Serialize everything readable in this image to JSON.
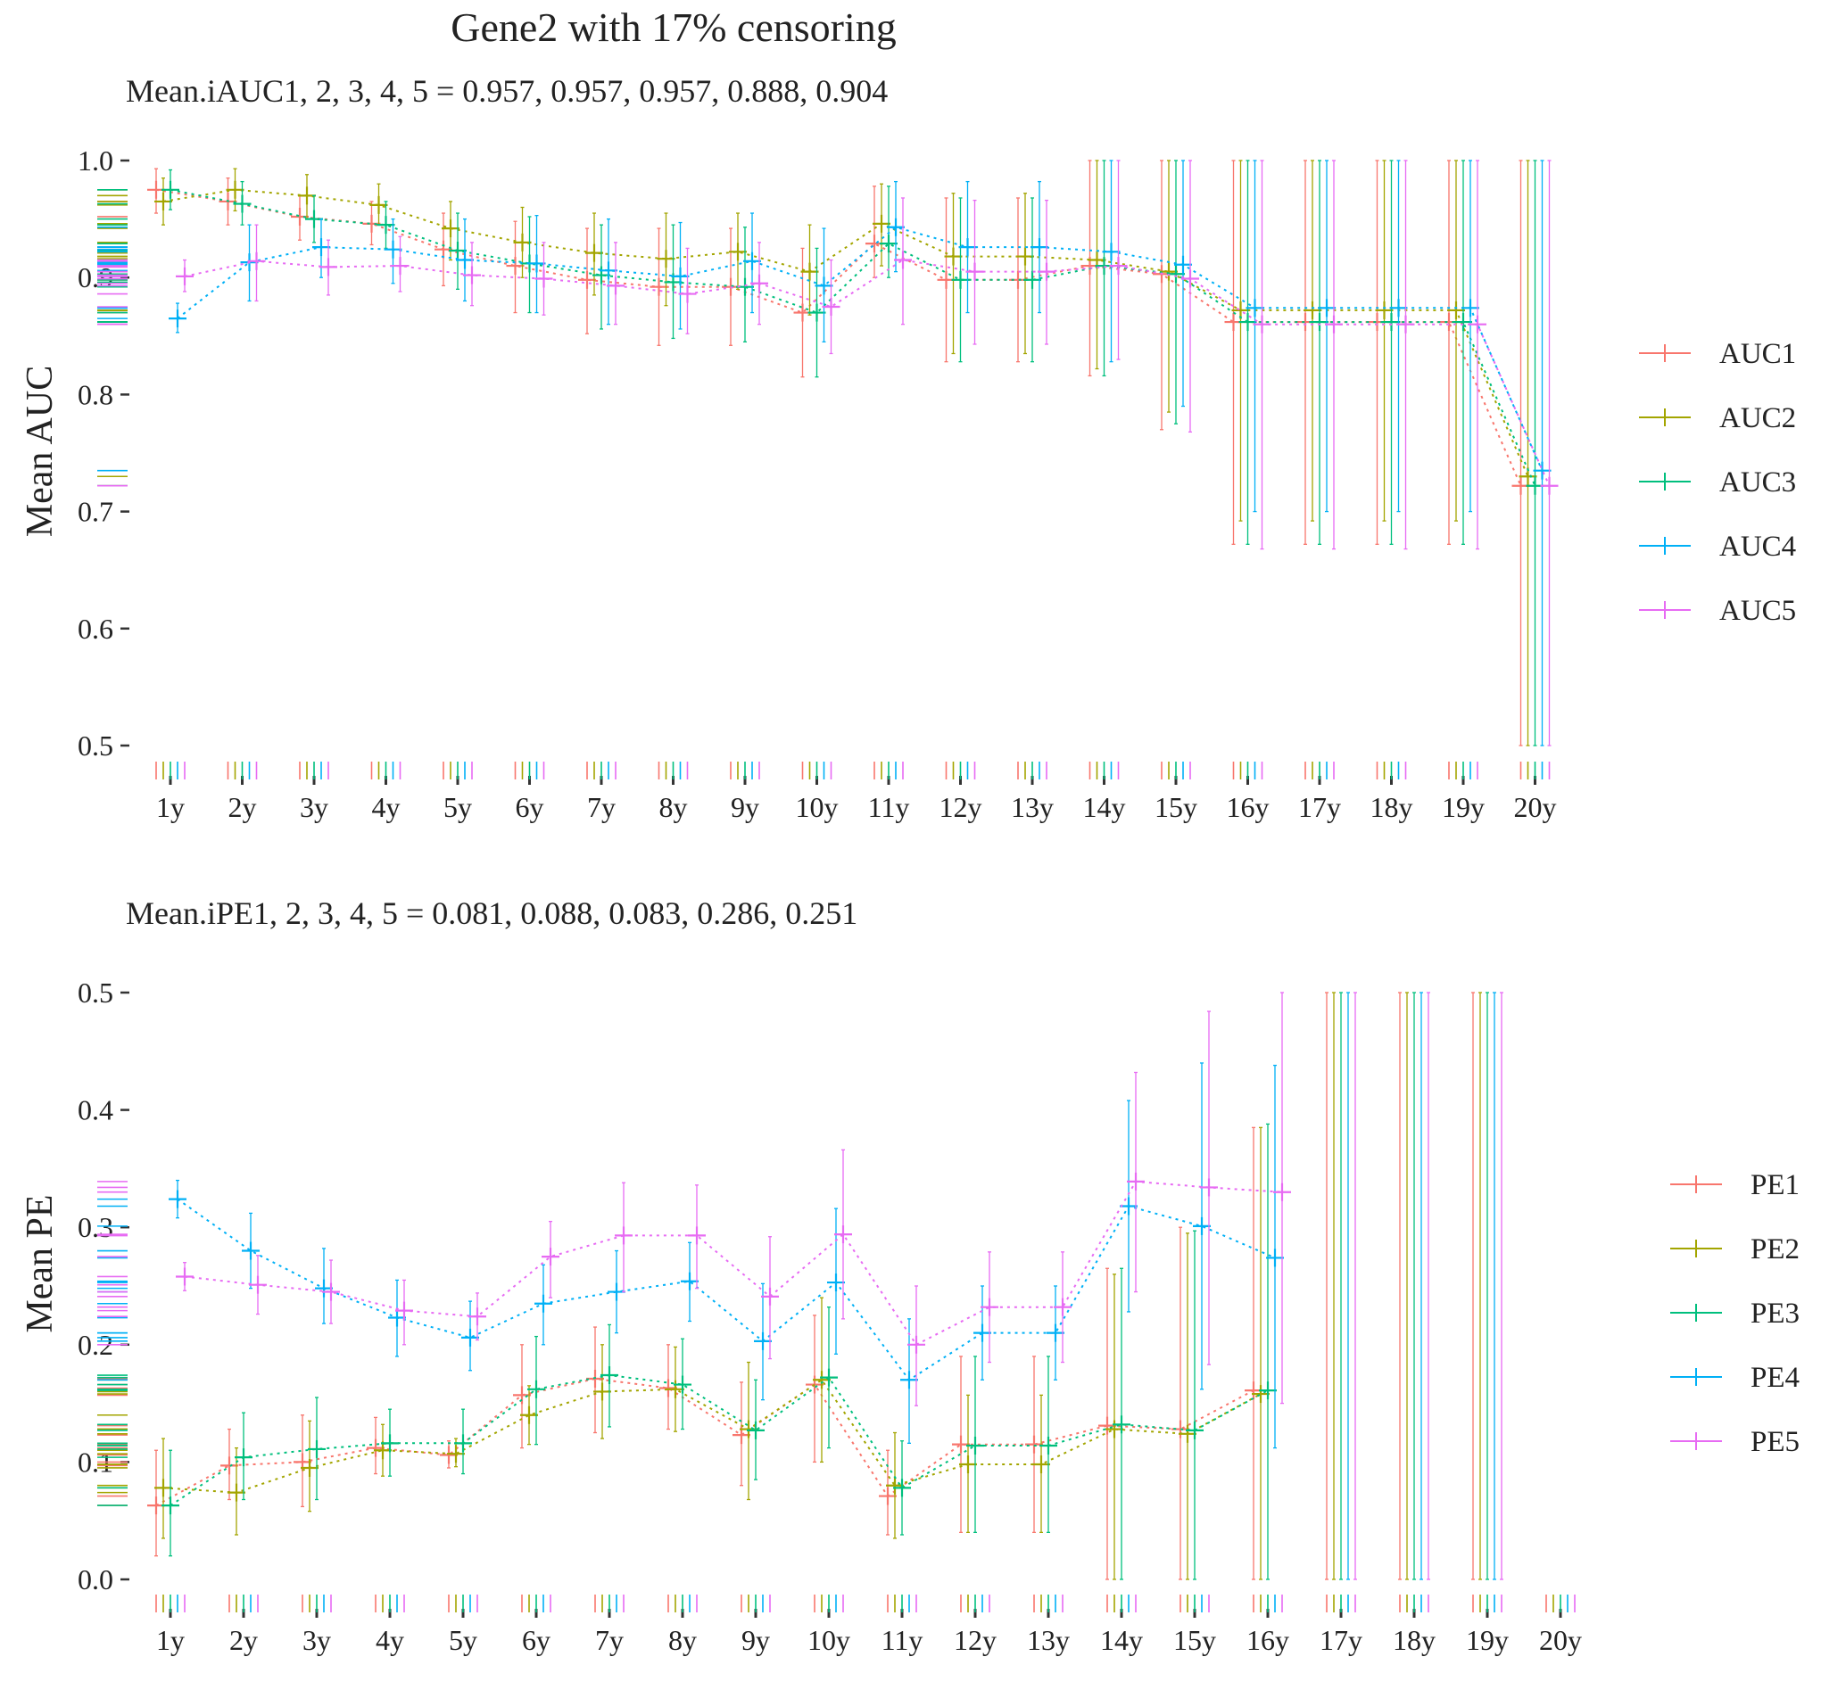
{
  "figure": {
    "title": "Gene2 with 17% censoring"
  },
  "legend_auc": {
    "items": [
      "AUC1",
      "AUC2",
      "AUC3",
      "AUC4",
      "AUC5"
    ]
  },
  "legend_pe": {
    "items": [
      "PE1",
      "PE2",
      "PE3",
      "PE4",
      "PE5"
    ]
  },
  "colors": [
    "#F8766D",
    "#A3A500",
    "#00BF7D",
    "#00B0F6",
    "#E76BF3"
  ],
  "chart_data": [
    {
      "type": "line",
      "panel": "auc",
      "subtitle": "Mean.iAUC1, 2, 3, 4, 5 =  0.957, 0.957, 0.957, 0.888, 0.904",
      "xlabel": "",
      "ylabel": "Mean AUC",
      "ylim": [
        0.5,
        1.0
      ],
      "yticks": [
        0.5,
        0.6,
        0.7,
        0.8,
        0.9,
        1.0
      ],
      "ytick_labels": [
        "0.5",
        "0.6",
        "0.7",
        "0.8",
        "0.9",
        "1.0"
      ],
      "categories": [
        "1y",
        "2y",
        "3y",
        "4y",
        "5y",
        "6y",
        "7y",
        "8y",
        "9y",
        "10y",
        "11y",
        "12y",
        "13y",
        "14y",
        "15y",
        "16y",
        "17y",
        "18y",
        "19y",
        "20y"
      ],
      "series": [
        {
          "name": "AUC1",
          "values": [
            0.975,
            0.965,
            0.952,
            0.946,
            0.924,
            0.91,
            0.898,
            0.892,
            0.892,
            0.87,
            0.929,
            0.898,
            0.898,
            0.91,
            0.903,
            0.862,
            0.862,
            0.862,
            0.862,
            0.722
          ],
          "lower": [
            0.955,
            0.945,
            0.932,
            0.928,
            0.893,
            0.87,
            0.852,
            0.842,
            0.842,
            0.815,
            0.9,
            0.828,
            0.828,
            0.816,
            0.77,
            0.672,
            0.672,
            0.672,
            0.672,
            0.5
          ],
          "upper": [
            0.993,
            0.985,
            0.97,
            0.965,
            0.955,
            0.948,
            0.942,
            0.942,
            0.942,
            0.925,
            0.978,
            0.968,
            0.968,
            1.0,
            1.0,
            1.0,
            1.0,
            1.0,
            1.0,
            1.0
          ]
        },
        {
          "name": "AUC2",
          "values": [
            0.965,
            0.975,
            0.97,
            0.962,
            0.942,
            0.93,
            0.921,
            0.916,
            0.922,
            0.905,
            0.946,
            0.918,
            0.918,
            0.915,
            0.905,
            0.872,
            0.872,
            0.872,
            0.872,
            0.73
          ],
          "lower": [
            0.945,
            0.957,
            0.95,
            0.945,
            0.915,
            0.9,
            0.885,
            0.876,
            0.89,
            0.868,
            0.91,
            0.835,
            0.835,
            0.822,
            0.785,
            0.692,
            0.692,
            0.692,
            0.692,
            0.5
          ],
          "upper": [
            0.985,
            0.993,
            0.988,
            0.98,
            0.965,
            0.96,
            0.955,
            0.955,
            0.955,
            0.945,
            0.98,
            0.972,
            0.972,
            1.0,
            1.0,
            1.0,
            1.0,
            1.0,
            1.0,
            1.0
          ]
        },
        {
          "name": "AUC3",
          "values": [
            0.975,
            0.963,
            0.95,
            0.945,
            0.923,
            0.912,
            0.902,
            0.896,
            0.892,
            0.87,
            0.929,
            0.898,
            0.898,
            0.91,
            0.903,
            0.862,
            0.862,
            0.862,
            0.862,
            0.722
          ],
          "lower": [
            0.958,
            0.945,
            0.93,
            0.925,
            0.89,
            0.87,
            0.856,
            0.848,
            0.845,
            0.815,
            0.9,
            0.828,
            0.828,
            0.816,
            0.775,
            0.672,
            0.672,
            0.672,
            0.672,
            0.5
          ],
          "upper": [
            0.992,
            0.982,
            0.97,
            0.965,
            0.955,
            0.952,
            0.945,
            0.945,
            0.943,
            0.925,
            0.978,
            0.968,
            0.968,
            1.0,
            1.0,
            1.0,
            1.0,
            1.0,
            1.0,
            1.0
          ]
        },
        {
          "name": "AUC4",
          "values": [
            0.865,
            0.913,
            0.926,
            0.924,
            0.915,
            0.912,
            0.906,
            0.901,
            0.914,
            0.893,
            0.943,
            0.926,
            0.926,
            0.922,
            0.911,
            0.874,
            0.874,
            0.874,
            0.874,
            0.735
          ],
          "lower": [
            0.853,
            0.88,
            0.9,
            0.895,
            0.88,
            0.87,
            0.86,
            0.856,
            0.87,
            0.845,
            0.905,
            0.87,
            0.87,
            0.828,
            0.79,
            0.7,
            0.7,
            0.7,
            0.7,
            0.5
          ],
          "upper": [
            0.878,
            0.945,
            0.95,
            0.95,
            0.95,
            0.953,
            0.95,
            0.947,
            0.955,
            0.942,
            0.982,
            0.982,
            0.982,
            1.0,
            1.0,
            1.0,
            1.0,
            1.0,
            1.0,
            1.0
          ]
        },
        {
          "name": "AUC5",
          "values": [
            0.901,
            0.914,
            0.909,
            0.91,
            0.902,
            0.899,
            0.893,
            0.886,
            0.895,
            0.875,
            0.915,
            0.905,
            0.905,
            0.91,
            0.899,
            0.86,
            0.86,
            0.86,
            0.86,
            0.722
          ],
          "lower": [
            0.888,
            0.88,
            0.885,
            0.888,
            0.876,
            0.868,
            0.86,
            0.852,
            0.86,
            0.835,
            0.86,
            0.843,
            0.843,
            0.83,
            0.768,
            0.668,
            0.668,
            0.668,
            0.668,
            0.5
          ],
          "upper": [
            0.915,
            0.945,
            0.932,
            0.935,
            0.93,
            0.93,
            0.93,
            0.925,
            0.93,
            0.915,
            0.968,
            0.966,
            0.966,
            1.0,
            1.0,
            1.0,
            1.0,
            1.0,
            1.0,
            1.0
          ]
        }
      ]
    },
    {
      "type": "line",
      "panel": "pe",
      "subtitle": "Mean.iPE1, 2, 3, 4, 5 =  0.081, 0.088, 0.083, 0.286, 0.251",
      "xlabel": "",
      "ylabel": "Mean PE",
      "ylim": [
        0.0,
        0.5
      ],
      "yticks": [
        0.0,
        0.1,
        0.2,
        0.3,
        0.4,
        0.5
      ],
      "ytick_labels": [
        "0.0",
        "0.1",
        "0.2",
        "0.3",
        "0.4",
        "0.5"
      ],
      "categories": [
        "1y",
        "2y",
        "3y",
        "4y",
        "5y",
        "6y",
        "7y",
        "8y",
        "9y",
        "10y",
        "11y",
        "12y",
        "13y",
        "14y",
        "15y",
        "16y",
        "17y",
        "18y",
        "19y",
        "20y"
      ],
      "series": [
        {
          "name": "PE1",
          "values": [
            0.063,
            0.097,
            0.1,
            0.112,
            0.106,
            0.157,
            0.171,
            0.163,
            0.123,
            0.166,
            0.071,
            0.115,
            0.115,
            0.131,
            0.128,
            0.161,
            null,
            null,
            null,
            null
          ],
          "lower": [
            0.02,
            0.068,
            0.062,
            0.09,
            0.095,
            0.112,
            0.125,
            0.128,
            0.08,
            0.1,
            0.038,
            0.04,
            0.04,
            0.0,
            0.0,
            0.0,
            0.0,
            0.0,
            0.0,
            null
          ],
          "upper": [
            0.11,
            0.128,
            0.14,
            0.138,
            0.118,
            0.2,
            0.215,
            0.2,
            0.168,
            0.225,
            0.11,
            0.19,
            0.19,
            0.265,
            0.3,
            0.385,
            0.5,
            0.5,
            0.5,
            null
          ]
        },
        {
          "name": "PE2",
          "values": [
            0.078,
            0.074,
            0.095,
            0.11,
            0.107,
            0.14,
            0.16,
            0.162,
            0.128,
            0.17,
            0.08,
            0.098,
            0.098,
            0.128,
            0.124,
            0.158,
            null,
            null,
            null,
            null
          ],
          "lower": [
            0.035,
            0.038,
            0.058,
            0.088,
            0.096,
            0.115,
            0.12,
            0.126,
            0.068,
            0.1,
            0.035,
            0.04,
            0.04,
            0.0,
            0.0,
            0.0,
            0.0,
            0.0,
            0.0,
            null
          ],
          "upper": [
            0.12,
            0.112,
            0.135,
            0.132,
            0.12,
            0.165,
            0.2,
            0.198,
            0.185,
            0.24,
            0.125,
            0.157,
            0.157,
            0.26,
            0.295,
            0.385,
            0.5,
            0.5,
            0.5,
            null
          ]
        },
        {
          "name": "PE3",
          "values": [
            0.063,
            0.104,
            0.111,
            0.116,
            0.116,
            0.162,
            0.174,
            0.166,
            0.127,
            0.172,
            0.078,
            0.114,
            0.114,
            0.132,
            0.127,
            0.161,
            null,
            null,
            null,
            null
          ],
          "lower": [
            0.02,
            0.068,
            0.068,
            0.088,
            0.09,
            0.115,
            0.13,
            0.128,
            0.085,
            0.112,
            0.038,
            0.04,
            0.04,
            0.0,
            0.0,
            0.0,
            0.0,
            0.0,
            0.0,
            null
          ],
          "upper": [
            0.11,
            0.142,
            0.155,
            0.145,
            0.145,
            0.207,
            0.217,
            0.205,
            0.17,
            0.232,
            0.118,
            0.19,
            0.19,
            0.265,
            0.297,
            0.388,
            0.5,
            0.5,
            0.5,
            null
          ]
        },
        {
          "name": "PE4",
          "values": [
            0.324,
            0.28,
            0.248,
            0.223,
            0.206,
            0.235,
            0.245,
            0.254,
            0.203,
            0.253,
            0.17,
            0.21,
            0.21,
            0.318,
            0.301,
            0.274,
            null,
            null,
            null,
            null
          ],
          "lower": [
            0.308,
            0.248,
            0.218,
            0.19,
            0.178,
            0.2,
            0.21,
            0.22,
            0.153,
            0.192,
            0.116,
            0.17,
            0.17,
            0.228,
            0.162,
            0.112,
            0.0,
            0.0,
            0.0,
            null
          ],
          "upper": [
            0.34,
            0.312,
            0.282,
            0.255,
            0.237,
            0.268,
            0.28,
            0.287,
            0.252,
            0.316,
            0.222,
            0.25,
            0.25,
            0.408,
            0.44,
            0.438,
            0.5,
            0.5,
            0.5,
            null
          ]
        },
        {
          "name": "PE5",
          "values": [
            0.258,
            0.251,
            0.245,
            0.229,
            0.224,
            0.275,
            0.293,
            0.293,
            0.241,
            0.294,
            0.2,
            0.232,
            0.232,
            0.339,
            0.334,
            0.33,
            null,
            null,
            null,
            null
          ],
          "lower": [
            0.246,
            0.226,
            0.218,
            0.2,
            0.204,
            0.24,
            0.245,
            0.248,
            0.188,
            0.222,
            0.148,
            0.185,
            0.185,
            0.245,
            0.183,
            0.15,
            0.0,
            0.0,
            0.0,
            null
          ],
          "upper": [
            0.27,
            0.276,
            0.272,
            0.255,
            0.244,
            0.305,
            0.338,
            0.336,
            0.292,
            0.366,
            0.25,
            0.279,
            0.279,
            0.432,
            0.484,
            0.5,
            0.5,
            0.5,
            0.5,
            null
          ]
        }
      ]
    }
  ]
}
